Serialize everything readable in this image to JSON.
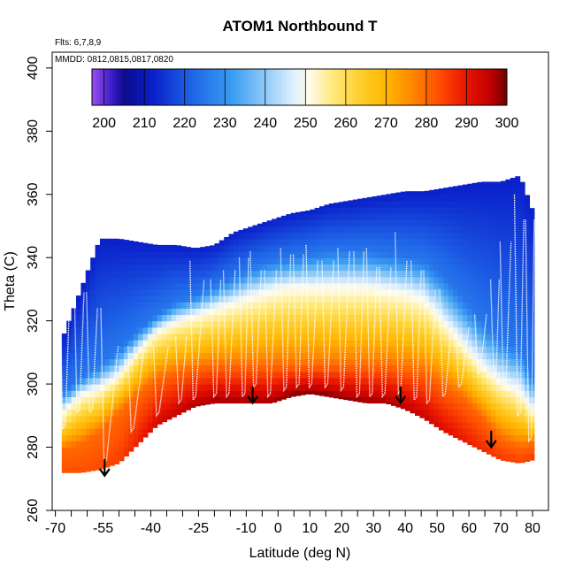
{
  "chart_data": {
    "type": "heatmap",
    "title": "ATOM1 Northbound T",
    "annotations": [
      "Flts: 6,7,8,9",
      "MMDD: 0812,0815,0817,0820"
    ],
    "xlabel": "Latitude (deg N)",
    "ylabel": "Theta (C)",
    "xlim": [
      -71,
      85
    ],
    "ylim": [
      260,
      405
    ],
    "x_ticks": [
      -70,
      -55,
      -40,
      -25,
      -10,
      0,
      10,
      20,
      30,
      40,
      50,
      60,
      70,
      80
    ],
    "x_tick_labels": [
      "-70",
      "-55",
      "-40",
      "-25",
      "-10",
      "0",
      "10",
      "20",
      "30",
      "40",
      "50",
      "60",
      "70",
      "80"
    ],
    "x_minor_ticks": [
      -65,
      -60,
      -50,
      -45,
      -35,
      -30,
      -20,
      -15,
      -5,
      5,
      15,
      25,
      35,
      45,
      55,
      65,
      75
    ],
    "y_ticks": [
      260,
      280,
      300,
      320,
      340,
      360,
      380,
      400
    ],
    "y_tick_labels": [
      "260",
      "280",
      "300",
      "320",
      "340",
      "360",
      "380",
      "400"
    ],
    "grid": false,
    "colorbar": {
      "placement": "top",
      "range": [
        197,
        300
      ],
      "tick_values": [
        200,
        210,
        220,
        230,
        240,
        250,
        260,
        270,
        280,
        290,
        300
      ],
      "tick_labels": [
        "200",
        "210",
        "220",
        "230",
        "240",
        "250",
        "260",
        "270",
        "280",
        "290",
        "300"
      ],
      "stops": [
        {
          "v": 197,
          "c": "#9a4ff0"
        },
        {
          "v": 202,
          "c": "#3a1cc8"
        },
        {
          "v": 205,
          "c": "#0c0c8c"
        },
        {
          "v": 212,
          "c": "#0a1fc9"
        },
        {
          "v": 222,
          "c": "#1f66e8"
        },
        {
          "v": 232,
          "c": "#3b9ef2"
        },
        {
          "v": 240,
          "c": "#8fcaf8"
        },
        {
          "v": 247,
          "c": "#dff0ff"
        },
        {
          "v": 251,
          "c": "#fffbea"
        },
        {
          "v": 257,
          "c": "#ffe97a"
        },
        {
          "v": 263,
          "c": "#ffd033"
        },
        {
          "v": 270,
          "c": "#ffb600"
        },
        {
          "v": 276,
          "c": "#ff8c00"
        },
        {
          "v": 283,
          "c": "#ff4f00"
        },
        {
          "v": 290,
          "c": "#e81400"
        },
        {
          "v": 296,
          "c": "#c00000"
        },
        {
          "v": 300,
          "c": "#6b0000"
        }
      ]
    },
    "profile_latitudes": [
      -68,
      -62,
      -56,
      -50,
      -44,
      -38,
      -32,
      -26,
      -20,
      -14,
      -8,
      -2,
      4,
      10,
      16,
      22,
      28,
      34,
      40,
      46,
      52,
      58,
      64,
      70,
      76,
      80
    ],
    "surface_theta": [
      272,
      272,
      273,
      275,
      281,
      287,
      290,
      293,
      294,
      294,
      294,
      294,
      296,
      297,
      296,
      295,
      294,
      294,
      292,
      289,
      285,
      282,
      279,
      276,
      275,
      276
    ],
    "domain_top_theta": [
      314,
      330,
      346,
      346,
      345,
      344,
      344,
      343,
      344,
      348,
      350,
      352,
      354,
      355,
      357,
      358,
      359,
      360,
      361,
      361,
      362,
      363,
      364,
      364,
      366,
      355
    ],
    "level_280K_theta": [
      279,
      281,
      285,
      291,
      297,
      302,
      304,
      305,
      306,
      306,
      306,
      306,
      306,
      306,
      306,
      306,
      306,
      306,
      305,
      304,
      300,
      296,
      290,
      283,
      280,
      281
    ],
    "level_250K_theta": [
      291,
      297,
      299,
      303,
      311,
      317,
      320,
      322,
      324,
      326,
      328,
      330,
      331,
      331,
      331,
      331,
      331,
      330,
      329,
      327,
      320,
      313,
      306,
      301,
      298,
      292
    ],
    "level_225K_theta": [
      297,
      302,
      306,
      311,
      317,
      322,
      326,
      328,
      331,
      334,
      337,
      339,
      340,
      341,
      342,
      342,
      342,
      341,
      340,
      339,
      334,
      327,
      320,
      314,
      311,
      302
    ],
    "flight_track_dives": [
      {
        "lat": -67.5,
        "top": 335,
        "bottom": 286
      },
      {
        "lat": -63,
        "top": 338,
        "bottom": 291
      },
      {
        "lat": -59,
        "top": 329,
        "bottom": 291
      },
      {
        "lat": -54.5,
        "top": 324,
        "bottom": 275
      },
      {
        "lat": -46,
        "top": 312,
        "bottom": 285
      },
      {
        "lat": -38,
        "top": 312,
        "bottom": 290
      },
      {
        "lat": -31,
        "top": 315,
        "bottom": 294
      },
      {
        "lat": -26.5,
        "top": 339,
        "bottom": 295
      },
      {
        "lat": -20,
        "top": 333,
        "bottom": 296
      },
      {
        "lat": -16,
        "top": 336,
        "bottom": 296
      },
      {
        "lat": -11,
        "top": 340,
        "bottom": 296
      },
      {
        "lat": -7.5,
        "top": 342,
        "bottom": 299
      },
      {
        "lat": -3,
        "top": 336,
        "bottom": 296
      },
      {
        "lat": 2,
        "top": 343,
        "bottom": 298
      },
      {
        "lat": 6,
        "top": 341,
        "bottom": 299
      },
      {
        "lat": 10,
        "top": 344,
        "bottom": 299
      },
      {
        "lat": 15,
        "top": 339,
        "bottom": 299
      },
      {
        "lat": 20,
        "top": 343,
        "bottom": 298
      },
      {
        "lat": 25,
        "top": 342,
        "bottom": 296
      },
      {
        "lat": 29,
        "top": 343,
        "bottom": 296
      },
      {
        "lat": 33,
        "top": 337,
        "bottom": 296
      },
      {
        "lat": 38,
        "top": 348,
        "bottom": 297
      },
      {
        "lat": 43,
        "top": 339,
        "bottom": 295
      },
      {
        "lat": 47,
        "top": 336,
        "bottom": 294
      },
      {
        "lat": 52,
        "top": 330,
        "bottom": 296
      },
      {
        "lat": 57,
        "top": 318,
        "bottom": 299
      },
      {
        "lat": 63,
        "top": 322,
        "bottom": 303
      },
      {
        "lat": 68,
        "top": 333,
        "bottom": 302
      },
      {
        "lat": 71,
        "top": 345,
        "bottom": 298
      },
      {
        "lat": 75.5,
        "top": 360,
        "bottom": 290
      },
      {
        "lat": 79,
        "top": 352,
        "bottom": 282
      }
    ],
    "arrow_markers": [
      {
        "lat": -54.5,
        "theta_from": 276,
        "theta_to": 271
      },
      {
        "lat": -8,
        "theta_from": 299,
        "theta_to": 294
      },
      {
        "lat": 38.5,
        "theta_from": 299,
        "theta_to": 294
      },
      {
        "lat": 67,
        "theta_from": 285,
        "theta_to": 280
      }
    ]
  }
}
